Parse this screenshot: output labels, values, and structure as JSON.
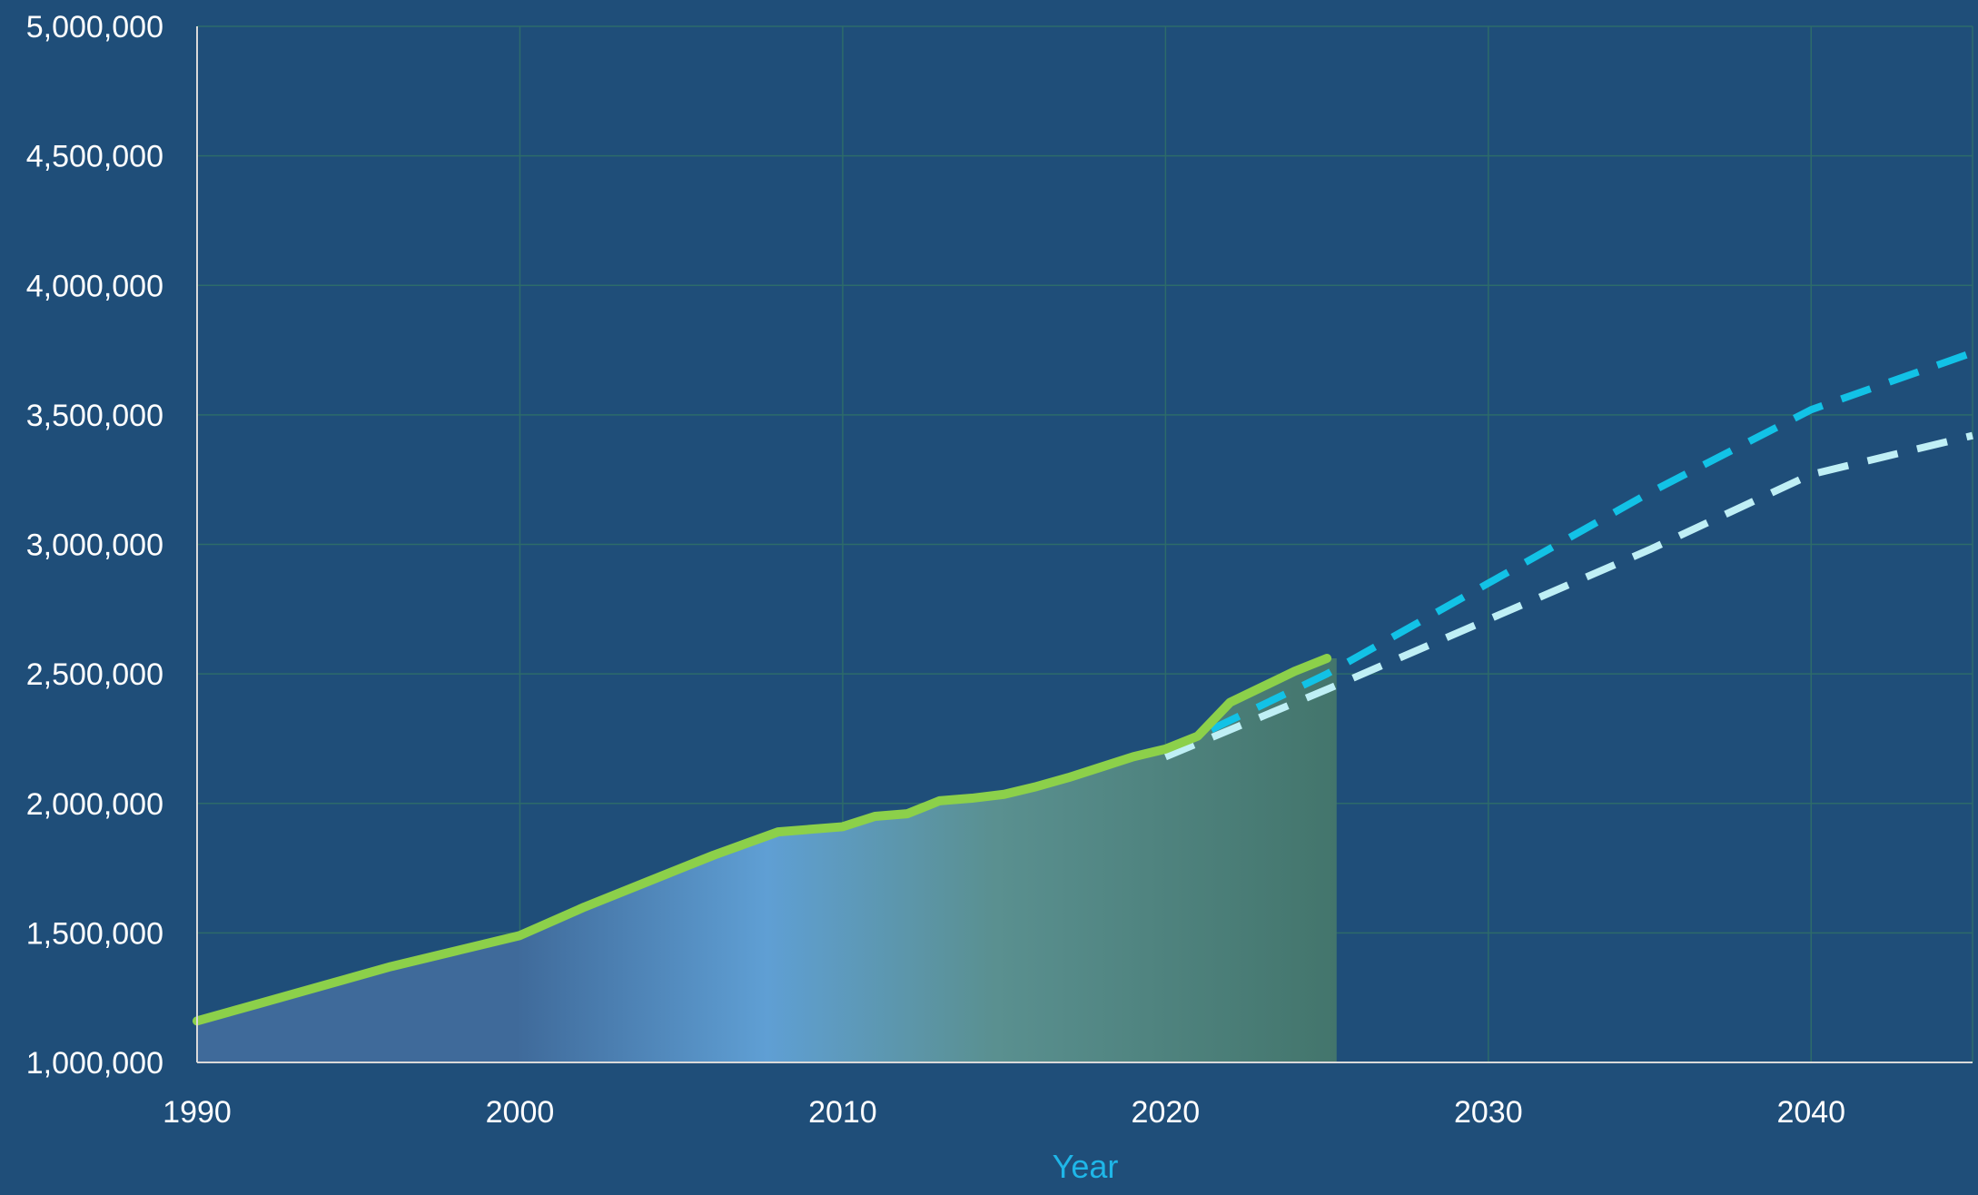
{
  "chart_data": {
    "type": "line",
    "title": "",
    "xlabel": "Year",
    "ylabel": "",
    "xlim": [
      1990,
      2045
    ],
    "ylim": [
      1000000,
      5000000
    ],
    "x_ticks": [
      1990,
      2000,
      2010,
      2020,
      2030,
      2040
    ],
    "x_tick_labels": [
      "1990",
      "2000",
      "2010",
      "2020",
      "2030",
      "2040"
    ],
    "y_ticks": [
      1000000,
      1500000,
      2000000,
      2500000,
      3000000,
      3500000,
      4000000,
      4500000,
      5000000
    ],
    "y_tick_labels": [
      "1,000,000",
      "1,500,000",
      "2,000,000",
      "2,500,000",
      "3,000,000",
      "3,500,000",
      "4,000,000",
      "4,500,000",
      "5,000,000"
    ],
    "grid": true,
    "legend": "none",
    "series": [
      {
        "style": "solid",
        "color": "#8cd04a",
        "area_fill": true,
        "x": [
          1990,
          1992,
          1994,
          1996,
          1998,
          2000,
          2002,
          2004,
          2006,
          2008,
          2010,
          2011,
          2012,
          2013,
          2014,
          2015,
          2016,
          2017,
          2018,
          2019,
          2020,
          2021,
          2022,
          2023,
          2024,
          2025
        ],
        "values": [
          1160000,
          1230000,
          1300000,
          1370000,
          1430000,
          1490000,
          1600000,
          1700000,
          1800000,
          1890000,
          1910000,
          1950000,
          1960000,
          2010000,
          2020000,
          2035000,
          2065000,
          2100000,
          2140000,
          2180000,
          2210000,
          2260000,
          2390000,
          2450000,
          2510000,
          2560000
        ]
      },
      {
        "style": "dashed",
        "color": "#12c2e6",
        "x": [
          2020,
          2025,
          2030,
          2035,
          2040,
          2045
        ],
        "values": [
          2200000,
          2500000,
          2850000,
          3200000,
          3520000,
          3740000
        ]
      },
      {
        "style": "dashed",
        "color": "#bfeff5",
        "x": [
          2020,
          2025,
          2030,
          2035,
          2040,
          2045
        ],
        "values": [
          2180000,
          2440000,
          2710000,
          2980000,
          3270000,
          3420000
        ]
      }
    ]
  }
}
